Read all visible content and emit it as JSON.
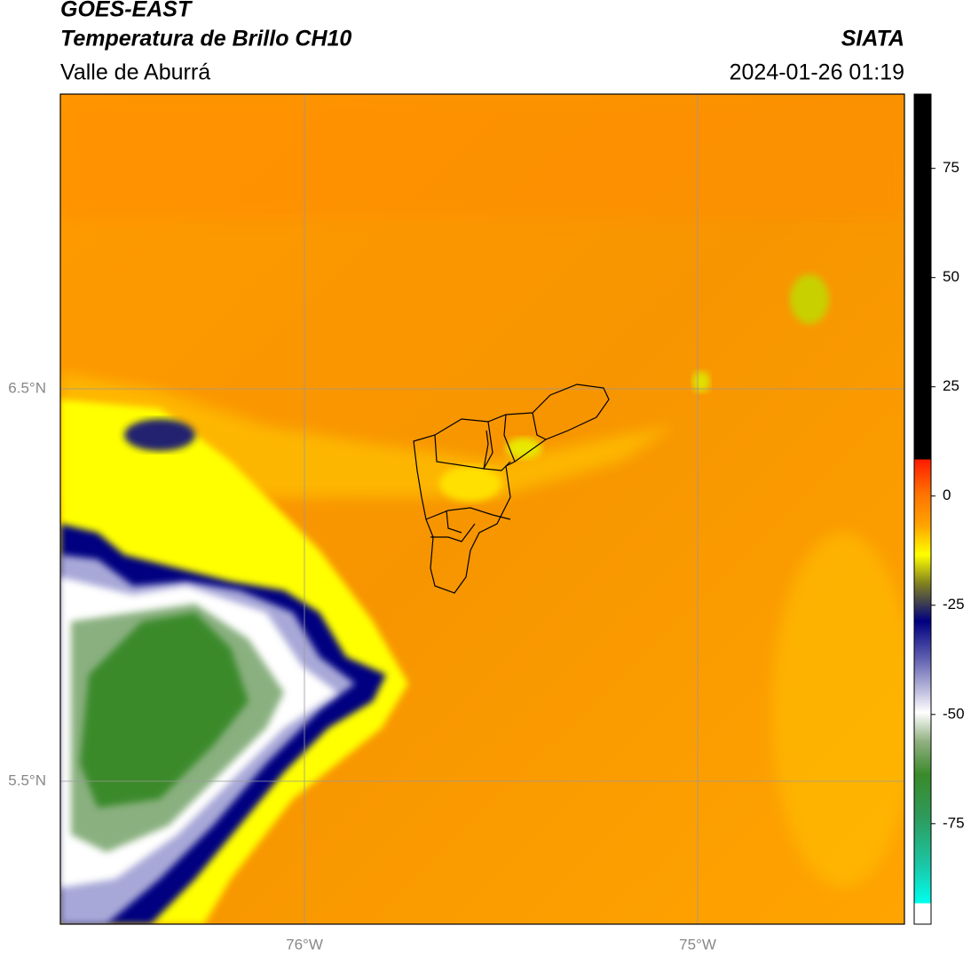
{
  "header": {
    "satellite": "GOES-EAST",
    "product": "Temperatura de Brillo CH10",
    "region": "Valle de Aburrá",
    "agency": "SIATA",
    "datetime": "2024-01-26 01:19"
  },
  "map": {
    "lat_labels": [
      "6.5°N",
      "5.5°N"
    ],
    "lon_labels": [
      "76°W",
      "75°W"
    ]
  },
  "colorbar": {
    "lim": [
      -98,
      92
    ],
    "ticks": [
      75,
      50,
      25,
      0,
      -25,
      -50,
      -75
    ]
  }
}
